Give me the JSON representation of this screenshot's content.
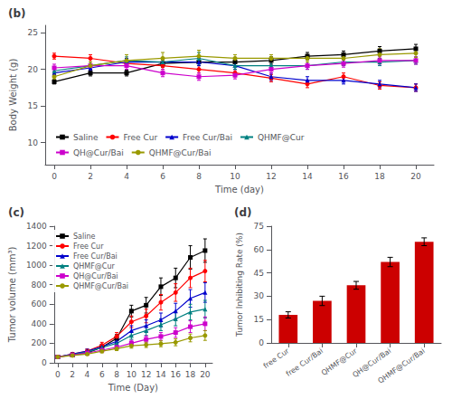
{
  "chart_data": [
    {
      "type": "line",
      "title": "(b)",
      "x": [
        0,
        2,
        4,
        6,
        8,
        10,
        12,
        14,
        16,
        18,
        20
      ],
      "series": [
        {
          "name": "Saline",
          "color": "#000000",
          "marker": "square",
          "values": [
            18.3,
            19.5,
            19.5,
            20.8,
            21.0,
            21.0,
            21.2,
            21.8,
            22.0,
            22.5,
            22.8
          ],
          "errors": [
            0.3,
            0.4,
            0.4,
            0.5,
            0.5,
            0.5,
            0.5,
            0.5,
            0.5,
            0.6,
            0.6
          ]
        },
        {
          "name": "Free Cur",
          "color": "#ff0000",
          "marker": "circle",
          "values": [
            21.8,
            21.5,
            20.8,
            20.5,
            20.0,
            19.5,
            18.8,
            18.0,
            19.0,
            17.8,
            17.5
          ],
          "errors": [
            0.4,
            0.5,
            0.5,
            0.5,
            0.5,
            0.5,
            0.5,
            0.5,
            0.5,
            0.5,
            0.5
          ]
        },
        {
          "name": "Free Cur/Bai",
          "color": "#0000cc",
          "marker": "triangle",
          "values": [
            19.5,
            20.2,
            21.0,
            21.0,
            21.0,
            20.5,
            19.0,
            18.5,
            18.5,
            18.0,
            17.5
          ],
          "errors": [
            0.5,
            0.5,
            0.5,
            0.5,
            0.5,
            0.5,
            0.5,
            0.5,
            0.5,
            0.5,
            0.5
          ]
        },
        {
          "name": "QHMF@Cur",
          "color": "#008080",
          "marker": "triangle",
          "values": [
            19.8,
            20.5,
            21.2,
            21.0,
            21.5,
            20.5,
            20.5,
            20.5,
            21.0,
            21.0,
            21.2
          ],
          "errors": [
            0.5,
            0.5,
            0.5,
            0.5,
            0.8,
            0.5,
            0.5,
            0.5,
            0.5,
            0.5,
            0.5
          ]
        },
        {
          "name": "QH@Cur/Bai",
          "color": "#cc00cc",
          "marker": "square",
          "values": [
            20.2,
            20.5,
            20.5,
            19.5,
            19.0,
            19.2,
            20.0,
            20.5,
            20.8,
            21.2,
            21.2
          ],
          "errors": [
            0.5,
            0.5,
            0.5,
            0.5,
            0.5,
            0.5,
            0.5,
            0.5,
            0.5,
            0.5,
            0.5
          ]
        },
        {
          "name": "QHMF@Cur/Bai",
          "color": "#999900",
          "marker": "circle",
          "values": [
            19.0,
            20.5,
            21.2,
            21.5,
            21.8,
            21.5,
            21.5,
            21.5,
            21.5,
            22.0,
            22.2
          ],
          "errors": [
            0.4,
            0.5,
            0.8,
            0.8,
            0.8,
            0.5,
            0.5,
            0.5,
            0.5,
            0.8,
            0.6
          ]
        }
      ],
      "xlabel": "Time (day)",
      "ylabel": "Body Weight (g)",
      "xlim": [
        -0.5,
        21
      ],
      "xticks": [
        0,
        2,
        4,
        6,
        8,
        10,
        12,
        14,
        16,
        18,
        20
      ],
      "ylim": [
        7,
        26
      ],
      "yticks": [
        10,
        15,
        20,
        25
      ],
      "legend": "lower left",
      "grid": false
    },
    {
      "type": "line",
      "title": "(c)",
      "x": [
        0,
        2,
        4,
        6,
        8,
        10,
        12,
        14,
        16,
        18,
        20
      ],
      "series": [
        {
          "name": "Saline",
          "color": "#000000",
          "marker": "square",
          "values": [
            60,
            80,
            100,
            160,
            250,
            530,
            590,
            780,
            870,
            1080,
            1150
          ],
          "errors": [
            10,
            15,
            20,
            30,
            40,
            60,
            80,
            90,
            100,
            120,
            120
          ]
        },
        {
          "name": "Free Cur",
          "color": "#ff0000",
          "marker": "circle",
          "values": [
            60,
            90,
            120,
            180,
            270,
            420,
            480,
            620,
            720,
            870,
            940
          ],
          "errors": [
            10,
            15,
            20,
            30,
            40,
            60,
            70,
            80,
            90,
            100,
            110
          ]
        },
        {
          "name": "Free Cur/Bai",
          "color": "#0000cc",
          "marker": "triangle",
          "values": [
            60,
            90,
            120,
            165,
            220,
            330,
            380,
            440,
            530,
            660,
            720
          ],
          "errors": [
            10,
            15,
            20,
            25,
            35,
            50,
            60,
            70,
            80,
            90,
            100
          ]
        },
        {
          "name": "QHMF@Cur",
          "color": "#008080",
          "marker": "triangle",
          "values": [
            60,
            85,
            110,
            155,
            200,
            280,
            330,
            390,
            450,
            520,
            550
          ],
          "errors": [
            10,
            12,
            18,
            22,
            30,
            40,
            50,
            60,
            70,
            80,
            90
          ]
        },
        {
          "name": "QH@Cur/Bai",
          "color": "#cc00cc",
          "marker": "square",
          "values": [
            60,
            80,
            100,
            130,
            160,
            200,
            240,
            270,
            310,
            370,
            400
          ],
          "errors": [
            10,
            12,
            15,
            20,
            25,
            30,
            35,
            40,
            50,
            60,
            70
          ]
        },
        {
          "name": "QHMF@Cur/Bai",
          "color": "#999900",
          "marker": "circle",
          "values": [
            60,
            75,
            90,
            120,
            145,
            175,
            185,
            195,
            210,
            255,
            280
          ],
          "errors": [
            8,
            10,
            12,
            18,
            20,
            25,
            28,
            30,
            35,
            40,
            50
          ]
        }
      ],
      "xlabel": "Time (Day)",
      "ylabel": "Tumor volume (mm³)",
      "xlim": [
        -0.5,
        21
      ],
      "xticks": [
        0,
        2,
        4,
        6,
        8,
        10,
        12,
        14,
        16,
        18,
        20
      ],
      "ylim": [
        0,
        1400
      ],
      "yticks": [
        0,
        200,
        400,
        600,
        800,
        1000,
        1200,
        1400
      ],
      "legend": "upper left",
      "grid": false
    },
    {
      "type": "bar",
      "title": "(d)",
      "categories": [
        "free Cur",
        "free Cur/Bai",
        "QHMF@Cur",
        "QH@Cur/Bai",
        "QHMF@Cur/Bai"
      ],
      "values": [
        18,
        27,
        37,
        52,
        65
      ],
      "errors": [
        2.0,
        3.0,
        2.5,
        3.0,
        2.5
      ],
      "color": "#cc0000",
      "ylabel": "Tumor Inhibiting Rate (%)",
      "ylim": [
        0,
        75
      ],
      "yticks": [
        0,
        15,
        30,
        45,
        60,
        75
      ],
      "grid": false
    }
  ]
}
